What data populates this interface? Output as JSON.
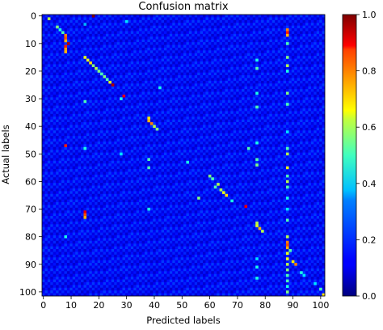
{
  "chart_data": {
    "type": "heatmap",
    "title": "Confusion matrix",
    "xlabel": "Predicted labels",
    "ylabel": "Actual labels",
    "n_classes": 102,
    "xlim": [
      0,
      101
    ],
    "ylim": [
      0,
      101
    ],
    "x_ticks": [
      0,
      10,
      20,
      30,
      40,
      50,
      60,
      70,
      80,
      90,
      100
    ],
    "y_ticks": [
      0,
      10,
      20,
      30,
      40,
      50,
      60,
      70,
      80,
      90,
      100
    ],
    "colormap": "jet",
    "colorbar": {
      "min": 0.0,
      "max": 1.0,
      "ticks": [
        "0.0",
        "0.2",
        "0.4",
        "0.6",
        "0.8",
        "1.0"
      ]
    },
    "cells": [
      [
        0,
        18,
        1.0
      ],
      [
        1,
        2,
        0.55
      ],
      [
        2,
        30,
        0.35
      ],
      [
        3,
        15,
        0.3
      ],
      [
        4,
        5,
        0.5
      ],
      [
        5,
        6,
        0.4
      ],
      [
        6,
        7,
        0.45
      ],
      [
        7,
        8,
        0.75
      ],
      [
        8,
        8,
        0.8
      ],
      [
        9,
        8,
        0.7
      ],
      [
        10,
        9,
        0.95
      ],
      [
        11,
        8,
        0.85
      ],
      [
        12,
        8,
        0.72
      ],
      [
        13,
        8,
        0.7
      ],
      [
        15,
        15,
        0.6
      ],
      [
        16,
        16,
        0.6
      ],
      [
        17,
        17,
        0.65
      ],
      [
        18,
        18,
        0.5
      ],
      [
        19,
        19,
        0.55
      ],
      [
        20,
        20,
        0.5
      ],
      [
        21,
        21,
        0.45
      ],
      [
        22,
        22,
        0.5
      ],
      [
        23,
        23,
        0.45
      ],
      [
        24,
        24,
        0.6
      ],
      [
        25,
        25,
        0.95
      ],
      [
        26,
        42,
        0.4
      ],
      [
        29,
        29,
        0.9
      ],
      [
        30,
        28,
        0.4
      ],
      [
        31,
        15,
        0.45
      ],
      [
        37,
        38,
        0.65
      ],
      [
        38,
        38,
        0.7
      ],
      [
        39,
        39,
        0.75
      ],
      [
        40,
        40,
        0.55
      ],
      [
        41,
        41,
        0.5
      ],
      [
        47,
        8,
        0.85
      ],
      [
        48,
        15,
        0.4
      ],
      [
        48,
        74,
        0.45
      ],
      [
        50,
        28,
        0.35
      ],
      [
        52,
        38,
        0.45
      ],
      [
        53,
        52,
        0.4
      ],
      [
        55,
        38,
        0.45
      ],
      [
        58,
        60,
        0.5
      ],
      [
        59,
        61,
        0.45
      ],
      [
        61,
        63,
        0.55
      ],
      [
        62,
        62,
        0.45
      ],
      [
        63,
        64,
        0.55
      ],
      [
        64,
        65,
        0.6
      ],
      [
        65,
        66,
        0.65
      ],
      [
        66,
        56,
        0.5
      ],
      [
        67,
        68,
        0.4
      ],
      [
        69,
        73,
        0.9
      ],
      [
        70,
        38,
        0.4
      ],
      [
        71,
        15,
        0.9
      ],
      [
        72,
        15,
        0.8
      ],
      [
        73,
        15,
        0.7
      ],
      [
        75,
        77,
        0.55
      ],
      [
        76,
        77,
        0.6
      ],
      [
        77,
        78,
        0.7
      ],
      [
        78,
        79,
        0.55
      ],
      [
        80,
        8,
        0.4
      ],
      [
        85,
        89,
        0.45
      ],
      [
        89,
        90,
        0.65
      ],
      [
        90,
        91,
        0.75
      ],
      [
        93,
        93,
        0.4
      ],
      [
        94,
        94,
        0.35
      ],
      [
        97,
        98,
        0.35
      ],
      [
        99,
        100,
        0.45
      ],
      [
        101,
        101,
        0.65
      ],
      [
        5,
        88,
        0.75
      ],
      [
        6,
        88,
        0.85
      ],
      [
        7,
        88,
        0.7
      ],
      [
        10,
        88,
        0.45
      ],
      [
        15,
        88,
        0.5
      ],
      [
        18,
        88,
        0.55
      ],
      [
        20,
        88,
        0.4
      ],
      [
        28,
        88,
        0.5
      ],
      [
        32,
        88,
        0.45
      ],
      [
        42,
        88,
        0.35
      ],
      [
        48,
        88,
        0.45
      ],
      [
        50,
        88,
        0.55
      ],
      [
        55,
        88,
        0.6
      ],
      [
        58,
        88,
        0.45
      ],
      [
        60,
        88,
        0.55
      ],
      [
        62,
        88,
        0.45
      ],
      [
        66,
        88,
        0.4
      ],
      [
        70,
        88,
        0.35
      ],
      [
        74,
        88,
        0.45
      ],
      [
        80,
        88,
        0.55
      ],
      [
        82,
        88,
        0.75
      ],
      [
        83,
        88,
        0.8
      ],
      [
        84,
        88,
        0.7
      ],
      [
        86,
        88,
        0.6
      ],
      [
        88,
        88,
        0.6
      ],
      [
        90,
        88,
        0.55
      ],
      [
        92,
        88,
        0.5
      ],
      [
        94,
        88,
        0.45
      ],
      [
        96,
        88,
        0.45
      ],
      [
        98,
        88,
        0.4
      ],
      [
        100,
        88,
        0.5
      ],
      [
        16,
        77,
        0.4
      ],
      [
        19,
        77,
        0.45
      ],
      [
        28,
        77,
        0.4
      ],
      [
        33,
        77,
        0.45
      ],
      [
        46,
        77,
        0.4
      ],
      [
        52,
        77,
        0.45
      ],
      [
        54,
        77,
        0.5
      ],
      [
        88,
        77,
        0.35
      ],
      [
        91,
        77,
        0.4
      ],
      [
        95,
        77,
        0.4
      ]
    ]
  }
}
